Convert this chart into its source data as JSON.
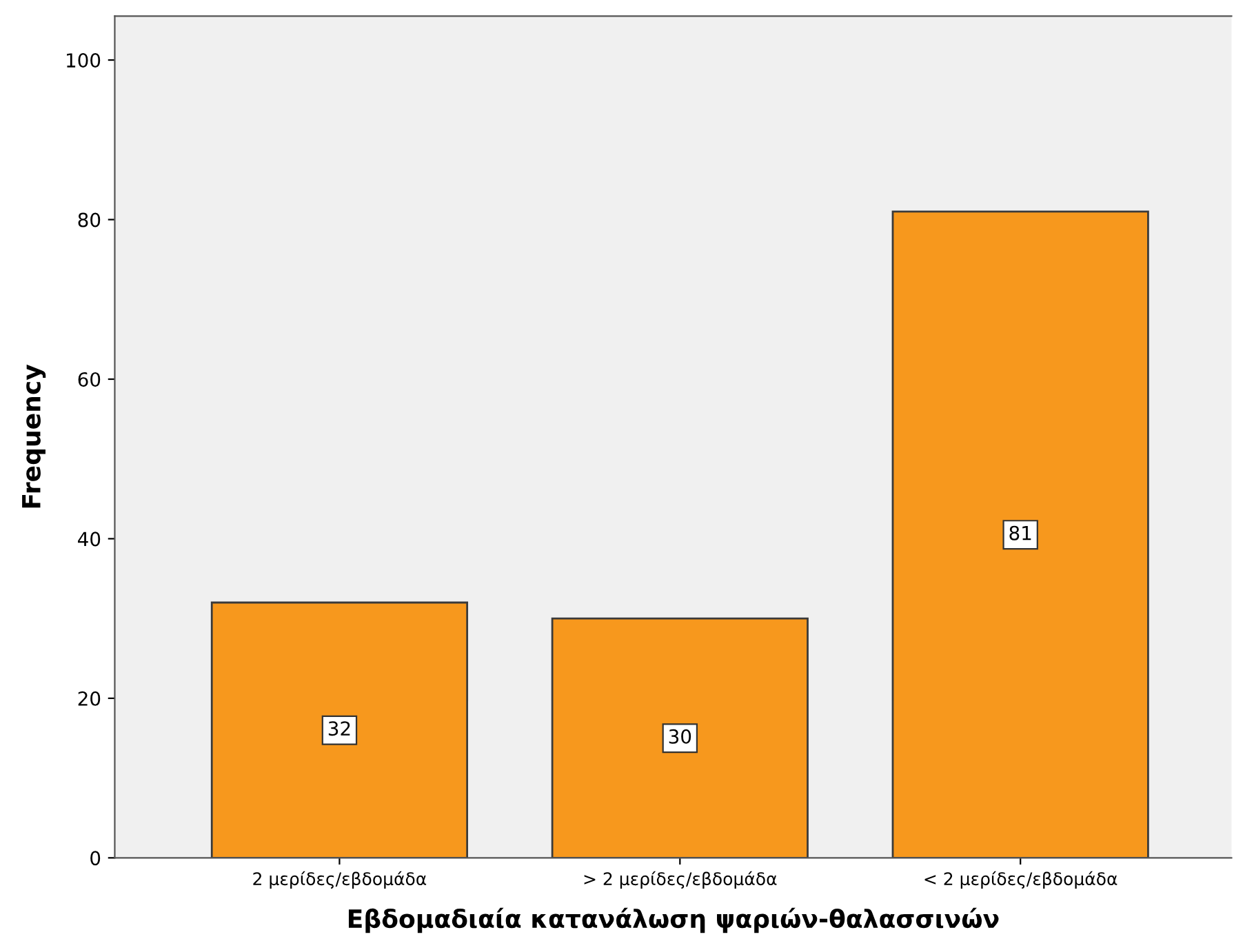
{
  "chart_data": {
    "type": "bar",
    "xlabel": "Εβδομαδιαία κατανάλωση ψαριών-θαλασσινών",
    "ylabel": "Frequency",
    "categories": [
      "2 μερίδες/εβδομάδα",
      "> 2 μερίδες/εβδομάδα",
      "< 2 μερίδες/εβδομάδα"
    ],
    "values": [
      32,
      30,
      81
    ],
    "color": "#f7981d",
    "ylim": [
      0,
      105.5
    ],
    "yticks": [
      0,
      20,
      40,
      60,
      80,
      100
    ],
    "data_labels": true,
    "grid": false
  }
}
